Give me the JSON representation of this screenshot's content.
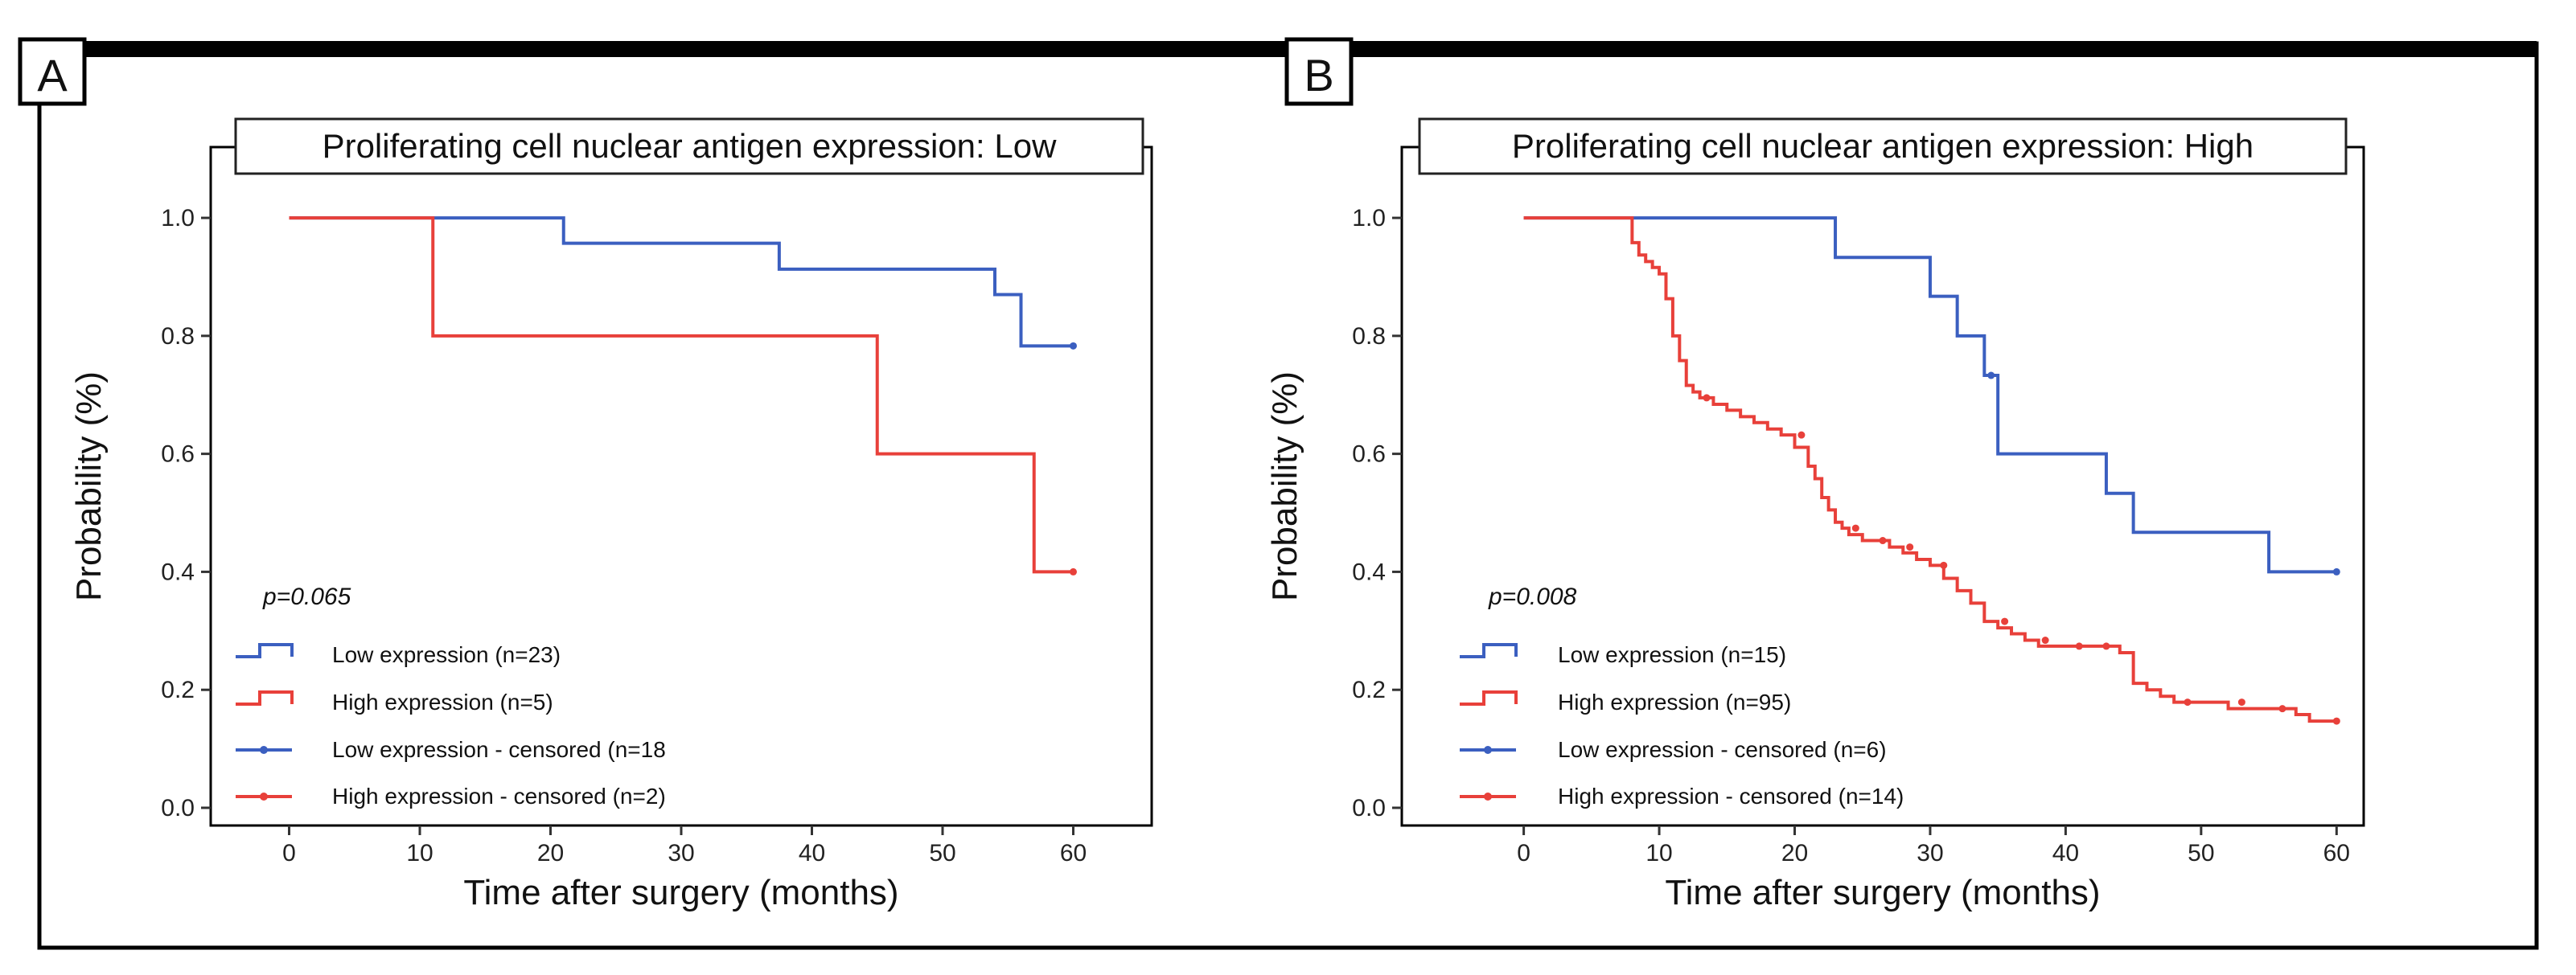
{
  "panels": [
    {
      "letter": "A",
      "title": "Proliferating cell nuclear antigen expression: Low",
      "p_value": "p=0.065",
      "legend": {
        "low": "Low expression (n=23)",
        "high": "High expression (n=5)",
        "low_censored": "Low expression - censored (n=18",
        "high_censored": "High expression - censored (n=2)"
      },
      "xlabel": "Time after surgery (months)",
      "ylabel": "Probability (%)"
    },
    {
      "letter": "B",
      "title": "Proliferating cell nuclear antigen expression: High",
      "p_value": "p=0.008",
      "legend": {
        "low": "Low expression (n=15)",
        "high": "High expression (n=95)",
        "low_censored": "Low expression - censored (n=6)",
        "high_censored": "High expression - censored (n=14)"
      },
      "xlabel": "Time after surgery (months)",
      "ylabel": "Probability (%)"
    }
  ],
  "colors": {
    "low": "#3b5fc0",
    "high": "#e8403a",
    "frame": "#000000",
    "axis": "#333333"
  },
  "chart_data": [
    {
      "type": "line",
      "step": true,
      "title": "Proliferating cell nuclear antigen expression: Low",
      "xlabel": "Time after surgery (months)",
      "ylabel": "Probability (%)",
      "xlim": [
        -6,
        66
      ],
      "ylim": [
        -0.03,
        1.12
      ],
      "xticks": [
        0,
        10,
        20,
        30,
        40,
        50,
        60
      ],
      "xtick_labels": [
        "0",
        "10",
        "20",
        "30",
        "40",
        "50",
        "60"
      ],
      "yticks": [
        0,
        0.2,
        0.4,
        0.6,
        0.8,
        1.0
      ],
      "ytick_labels": [
        "0.0",
        "0.2",
        "0.4",
        "0.6",
        "0.8",
        "1.0"
      ],
      "series": [
        {
          "name": "Low expression (n=23)",
          "color": "low",
          "x": [
            0,
            21,
            37.5,
            54,
            56,
            60
          ],
          "y": [
            1.0,
            0.957,
            0.913,
            0.87,
            0.783,
            0.783
          ],
          "censored_x": [
            60
          ],
          "censored_y": [
            0.783
          ]
        },
        {
          "name": "High expression (n=5)",
          "color": "high",
          "x": [
            0,
            11,
            45,
            57,
            60
          ],
          "y": [
            1.0,
            0.8,
            0.6,
            0.4,
            0.4
          ],
          "censored_x": [
            60
          ],
          "censored_y": [
            0.4
          ]
        }
      ]
    },
    {
      "type": "line",
      "step": true,
      "title": "Proliferating cell nuclear antigen expression: High",
      "xlabel": "Time after surgery (months)",
      "ylabel": "Probability (%)",
      "xlim": [
        -9,
        62
      ],
      "ylim": [
        -0.03,
        1.12
      ],
      "xticks": [
        0,
        10,
        20,
        30,
        40,
        50,
        60
      ],
      "xtick_labels": [
        "0",
        "10",
        "20",
        "30",
        "40",
        "50",
        "60"
      ],
      "yticks": [
        0,
        0.2,
        0.4,
        0.6,
        0.8,
        1.0
      ],
      "ytick_labels": [
        "0.0",
        "0.2",
        "0.4",
        "0.6",
        "0.8",
        "1.0"
      ],
      "series": [
        {
          "name": "Low expression (n=15)",
          "color": "low",
          "x": [
            0,
            23,
            30,
            32,
            34,
            35,
            43,
            45,
            55,
            60
          ],
          "y": [
            1.0,
            0.933,
            0.867,
            0.8,
            0.733,
            0.6,
            0.533,
            0.467,
            0.4,
            0.4
          ],
          "censored_x": [
            34.5,
            60
          ],
          "censored_y": [
            0.733,
            0.4
          ]
        },
        {
          "name": "High expression (n=95)",
          "color": "high",
          "x": [
            0,
            8,
            8.5,
            9,
            9.5,
            10,
            10.5,
            11,
            11.5,
            12,
            12.5,
            13,
            14,
            15,
            16,
            17,
            18,
            19,
            20,
            21,
            21.5,
            22,
            22.5,
            23,
            23.5,
            24,
            25,
            26,
            27,
            28,
            29,
            30,
            31,
            32,
            33,
            34,
            35,
            36,
            37,
            38,
            40,
            42,
            44,
            45,
            46,
            47,
            48,
            50,
            52,
            55,
            57,
            58,
            60
          ],
          "y": [
            1.0,
            0.958,
            0.937,
            0.926,
            0.916,
            0.905,
            0.863,
            0.8,
            0.758,
            0.716,
            0.705,
            0.695,
            0.684,
            0.674,
            0.663,
            0.653,
            0.642,
            0.632,
            0.611,
            0.579,
            0.558,
            0.526,
            0.505,
            0.484,
            0.474,
            0.463,
            0.453,
            0.453,
            0.442,
            0.432,
            0.421,
            0.411,
            0.389,
            0.368,
            0.347,
            0.316,
            0.305,
            0.295,
            0.284,
            0.274,
            0.274,
            0.274,
            0.263,
            0.211,
            0.2,
            0.189,
            0.179,
            0.179,
            0.168,
            0.168,
            0.158,
            0.147,
            0.147
          ],
          "censored_x": [
            13.5,
            20.5,
            24.5,
            26.5,
            28.5,
            31,
            35.5,
            38.5,
            41,
            43,
            49,
            53,
            56,
            60
          ],
          "censored_y": [
            0.695,
            0.632,
            0.474,
            0.453,
            0.442,
            0.411,
            0.316,
            0.284,
            0.274,
            0.274,
            0.179,
            0.179,
            0.168,
            0.147
          ]
        }
      ]
    }
  ]
}
